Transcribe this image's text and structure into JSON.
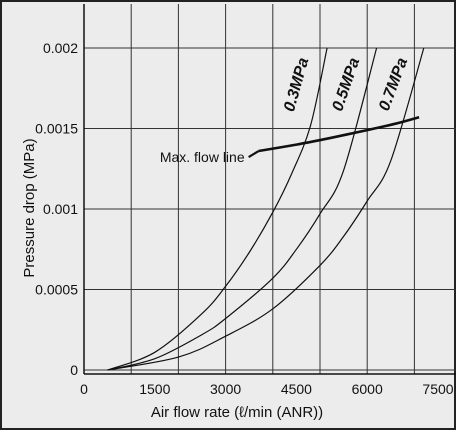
{
  "chart_data": {
    "type": "line",
    "title": "",
    "xlabel": "Air flow rate (ℓ/min (ANR))",
    "ylabel": "Pressure drop (MPa)",
    "xlim": [
      0,
      8500
    ],
    "ylim": [
      0,
      0.002
    ],
    "grid": true,
    "x_ticks": [
      0,
      1500,
      3000,
      4500,
      6000,
      7500
    ],
    "x_tick_labels": [
      "0",
      "1500",
      "3000",
      "4500",
      "6000",
      "7500"
    ],
    "y_ticks": [
      0,
      0.0005,
      0.001,
      0.0015,
      0.002
    ],
    "y_tick_labels": [
      "0",
      "0.0005",
      "0.001",
      "0.0015",
      "0.002"
    ],
    "series": [
      {
        "name": "0.3MPa",
        "x": [
          500,
          1500,
          2500,
          3000,
          3500,
          4000,
          4400,
          4800,
          5150
        ],
        "y": [
          0,
          0.00011,
          0.00035,
          0.00052,
          0.00073,
          0.00098,
          0.00122,
          0.00152,
          0.002
        ]
      },
      {
        "name": "0.5MPa",
        "x": [
          500,
          1500,
          2500,
          3000,
          4000,
          4500,
          5000,
          5500,
          6200
        ],
        "y": [
          0,
          7e-05,
          0.00022,
          0.00032,
          0.00057,
          0.00075,
          0.00097,
          0.00124,
          0.002
        ]
      },
      {
        "name": "0.7MPa",
        "x": [
          500,
          2000,
          3000,
          4000,
          5000,
          5500,
          6000,
          6500,
          7200
        ],
        "y": [
          0,
          8e-05,
          0.00021,
          0.00038,
          0.00065,
          0.00083,
          0.00105,
          0.0013,
          0.002
        ]
      },
      {
        "name": "Max. flow line",
        "x": [
          3700,
          4500,
          5200,
          6000,
          6600,
          7100
        ],
        "y": [
          0.00136,
          0.0014,
          0.00144,
          0.00149,
          0.00153,
          0.00157
        ]
      }
    ],
    "annotations": [
      "Max. flow line"
    ]
  }
}
